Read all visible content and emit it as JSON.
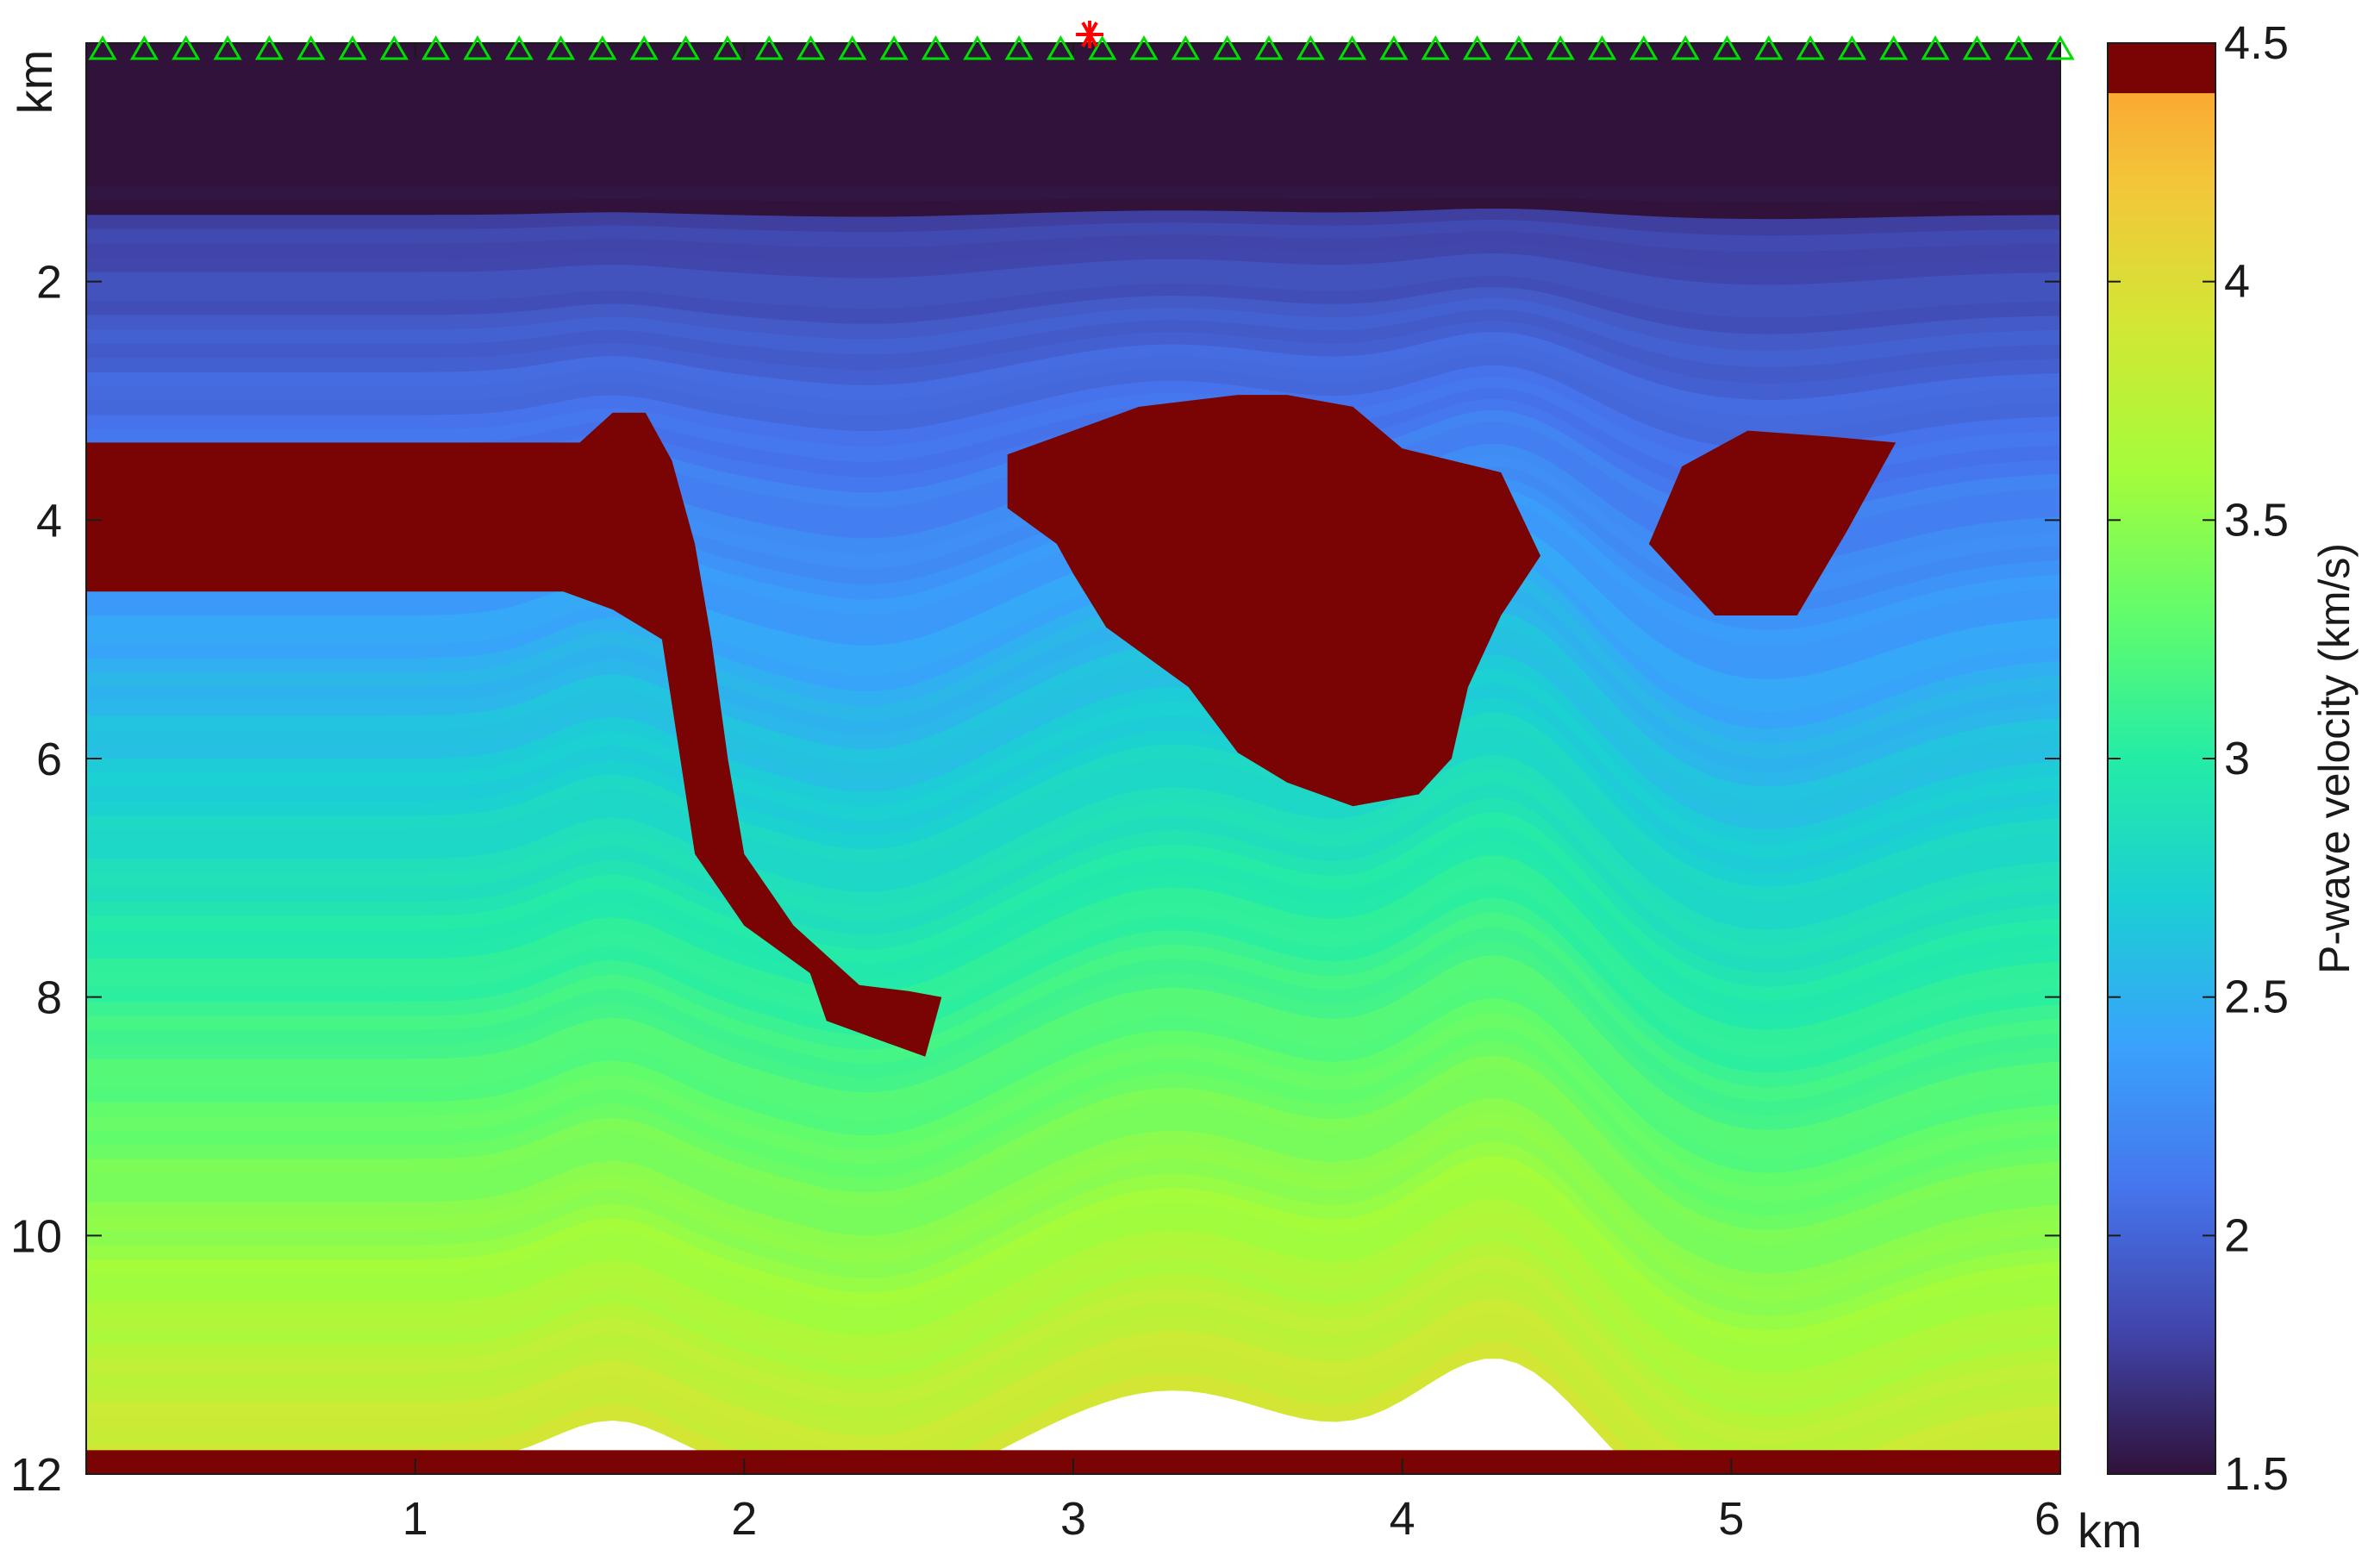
{
  "chart_data": {
    "type": "heatmap",
    "title": "",
    "x_unit": "km",
    "y_unit": "km",
    "xlim": [
      0,
      6
    ],
    "ylim": [
      12,
      0
    ],
    "x_ticks": [
      1,
      2,
      3,
      4,
      5,
      6
    ],
    "y_ticks": [
      2,
      4,
      6,
      8,
      10,
      12
    ],
    "colorbar": {
      "label": "P-wave velocity (km/s)",
      "range": [
        1.5,
        4.5
      ],
      "ticks": [
        1.5,
        2,
        2.5,
        3,
        3.5,
        4,
        4.5
      ],
      "colormap": "turbo"
    },
    "water_velocity": 1.5,
    "salt_velocity": 4.5,
    "receivers": {
      "x_start": 0.05,
      "x_end": 6.0,
      "count": 48,
      "depth": 0,
      "marker": "triangle",
      "color": "#00dd00"
    },
    "source": {
      "x": 3.05,
      "depth": 0,
      "marker": "asterisk",
      "color": "#ff0000"
    },
    "salt_bodies": [
      {
        "name": "salt-sheet-and-stem",
        "polygon": [
          [
            0,
            3.35
          ],
          [
            1.5,
            3.35
          ],
          [
            1.6,
            3.1
          ],
          [
            1.7,
            3.1
          ],
          [
            1.78,
            3.5
          ],
          [
            1.85,
            4.2
          ],
          [
            1.9,
            5.0
          ],
          [
            1.95,
            6.0
          ],
          [
            2.0,
            6.8
          ],
          [
            2.15,
            7.4
          ],
          [
            2.35,
            7.9
          ],
          [
            2.5,
            7.95
          ],
          [
            2.6,
            8.0
          ],
          [
            2.55,
            8.5
          ],
          [
            2.4,
            8.35
          ],
          [
            2.25,
            8.2
          ],
          [
            2.2,
            7.8
          ],
          [
            2.0,
            7.4
          ],
          [
            1.85,
            6.8
          ],
          [
            1.8,
            5.9
          ],
          [
            1.75,
            5.0
          ],
          [
            1.6,
            4.75
          ],
          [
            1.45,
            4.6
          ],
          [
            0,
            4.6
          ]
        ]
      },
      {
        "name": "central-salt-body",
        "polygon": [
          [
            2.8,
            3.45
          ],
          [
            2.95,
            3.3
          ],
          [
            3.2,
            3.05
          ],
          [
            3.5,
            2.95
          ],
          [
            3.65,
            2.95
          ],
          [
            3.85,
            3.05
          ],
          [
            4.0,
            3.4
          ],
          [
            4.3,
            3.6
          ],
          [
            4.42,
            4.3
          ],
          [
            4.3,
            4.8
          ],
          [
            4.2,
            5.4
          ],
          [
            4.15,
            6.0
          ],
          [
            4.05,
            6.3
          ],
          [
            3.85,
            6.4
          ],
          [
            3.65,
            6.2
          ],
          [
            3.5,
            5.95
          ],
          [
            3.35,
            5.4
          ],
          [
            3.1,
            4.9
          ],
          [
            3.0,
            4.45
          ],
          [
            2.95,
            4.2
          ],
          [
            2.8,
            3.9
          ]
        ]
      },
      {
        "name": "right-salt-body",
        "polygon": [
          [
            4.75,
            4.2
          ],
          [
            4.85,
            3.55
          ],
          [
            5.05,
            3.25
          ],
          [
            5.3,
            3.3
          ],
          [
            5.5,
            3.35
          ],
          [
            5.35,
            4.1
          ],
          [
            5.2,
            4.8
          ],
          [
            4.95,
            4.8
          ]
        ]
      }
    ],
    "bottom_layer": {
      "depth_top": 11.8,
      "velocity": 4.5
    }
  }
}
